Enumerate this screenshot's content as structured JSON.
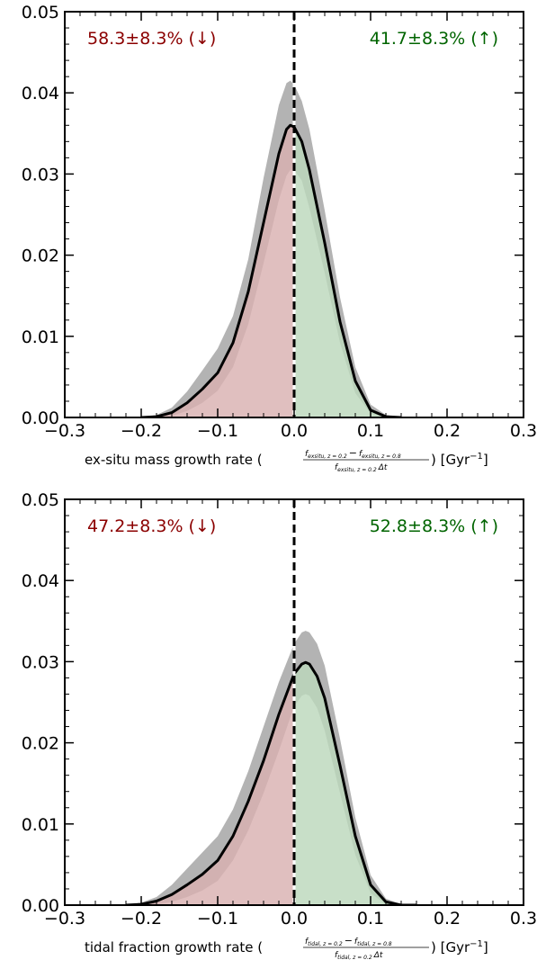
{
  "chart_data": [
    {
      "type": "area",
      "xlabel": "ex-situ mass growth rate",
      "formula": {
        "num_left": "f",
        "num_left_sub": "exsitu, z = 0.2",
        "minus": "−",
        "num_right": "f",
        "num_right_sub": "exsitu, z = 0.8",
        "den": "f",
        "den_sub": "exsitu, z = 0.2",
        "den_tail": "Δt"
      },
      "unit": "[Gyr",
      "unit_exp": "−1",
      "unit_close": "]",
      "xlim": [
        -0.3,
        0.3
      ],
      "ylim": [
        0.0,
        0.05
      ],
      "xticks": [
        -0.3,
        -0.2,
        -0.1,
        0.0,
        0.1,
        0.2,
        0.3
      ],
      "xtick_labels": [
        "−0.3",
        "−0.2",
        "−0.1",
        "0.0",
        "0.1",
        "0.2",
        "0.3"
      ],
      "yticks": [
        0.0,
        0.01,
        0.02,
        0.03,
        0.04,
        0.05
      ],
      "ytick_labels": [
        "0.00",
        "0.01",
        "0.02",
        "0.03",
        "0.04",
        "0.05"
      ],
      "annotations": {
        "left": "58.3±8.3% (↓)",
        "right": "41.7±8.3% (↑)",
        "left_color": "#8b0000",
        "right_color": "#006400"
      },
      "divider_x": 0.0,
      "x": [
        -0.2,
        -0.18,
        -0.16,
        -0.14,
        -0.12,
        -0.1,
        -0.08,
        -0.06,
        -0.04,
        -0.02,
        -0.01,
        -0.005,
        0.0,
        0.01,
        0.02,
        0.04,
        0.06,
        0.08,
        0.1,
        0.12,
        0.14
      ],
      "median": [
        0.0,
        0.0001,
        0.0006,
        0.0018,
        0.0035,
        0.0055,
        0.0092,
        0.0155,
        0.024,
        0.0325,
        0.0355,
        0.036,
        0.0358,
        0.034,
        0.0305,
        0.0215,
        0.0118,
        0.0045,
        0.0009,
        0.0001,
        0.0
      ],
      "upper": [
        0.0,
        0.0003,
        0.0012,
        0.0032,
        0.0058,
        0.0085,
        0.0125,
        0.0195,
        0.0295,
        0.0385,
        0.0412,
        0.0415,
        0.041,
        0.039,
        0.0355,
        0.0255,
        0.0148,
        0.0062,
        0.0016,
        0.0003,
        0.0
      ],
      "lower": [
        0.0,
        0.0,
        0.0002,
        0.0008,
        0.0018,
        0.0033,
        0.0062,
        0.0115,
        0.019,
        0.0268,
        0.0298,
        0.0305,
        0.0305,
        0.0292,
        0.0258,
        0.0178,
        0.0092,
        0.003,
        0.0005,
        0.0,
        0.0
      ],
      "fill_colors": {
        "negative": "#d9b1b1",
        "positive": "#bcd8bc",
        "band": "#b3b3b3"
      }
    },
    {
      "type": "area",
      "xlabel": "tidal fraction growth rate",
      "formula": {
        "num_left": "f",
        "num_left_sub": "tidal, z = 0.2",
        "minus": "−",
        "num_right": "f",
        "num_right_sub": "tidal, z = 0.8",
        "den": "f",
        "den_sub": "tidal, z = 0.2",
        "den_tail": "Δt"
      },
      "unit": "[Gyr",
      "unit_exp": "−1",
      "unit_close": "]",
      "xlim": [
        -0.3,
        0.3
      ],
      "ylim": [
        0.0,
        0.05
      ],
      "xticks": [
        -0.3,
        -0.2,
        -0.1,
        0.0,
        0.1,
        0.2,
        0.3
      ],
      "xtick_labels": [
        "−0.3",
        "−0.2",
        "−0.1",
        "0.0",
        "0.1",
        "0.2",
        "0.3"
      ],
      "yticks": [
        0.0,
        0.01,
        0.02,
        0.03,
        0.04,
        0.05
      ],
      "ytick_labels": [
        "0.00",
        "0.01",
        "0.02",
        "0.03",
        "0.04",
        "0.05"
      ],
      "annotations": {
        "left": "47.2±8.3% (↓)",
        "right": "52.8±8.3% (↑)",
        "left_color": "#8b0000",
        "right_color": "#006400"
      },
      "divider_x": 0.0,
      "x": [
        -0.22,
        -0.2,
        -0.18,
        -0.16,
        -0.14,
        -0.12,
        -0.1,
        -0.08,
        -0.06,
        -0.04,
        -0.02,
        0.0,
        0.01,
        0.015,
        0.02,
        0.03,
        0.04,
        0.06,
        0.08,
        0.1,
        0.12,
        0.14,
        0.16
      ],
      "median": [
        0.0,
        0.0001,
        0.0005,
        0.0013,
        0.0025,
        0.0038,
        0.0055,
        0.0085,
        0.0128,
        0.0178,
        0.0235,
        0.0285,
        0.0297,
        0.0299,
        0.0297,
        0.0282,
        0.0255,
        0.0172,
        0.0085,
        0.0025,
        0.0004,
        0.0,
        0.0
      ],
      "upper": [
        0.0,
        0.0003,
        0.001,
        0.0025,
        0.0045,
        0.0065,
        0.0085,
        0.0118,
        0.0165,
        0.022,
        0.0275,
        0.0322,
        0.0336,
        0.0338,
        0.0336,
        0.0322,
        0.0295,
        0.0205,
        0.0108,
        0.0037,
        0.0008,
        0.0001,
        0.0
      ],
      "lower": [
        0.0,
        0.0,
        0.0001,
        0.0004,
        0.001,
        0.0018,
        0.003,
        0.0055,
        0.0092,
        0.0138,
        0.019,
        0.0245,
        0.0258,
        0.026,
        0.0258,
        0.0243,
        0.0215,
        0.0138,
        0.0062,
        0.0015,
        0.0001,
        0.0,
        0.0
      ],
      "fill_colors": {
        "negative": "#d9b1b1",
        "positive": "#bcd8bc",
        "band": "#b3b3b3"
      }
    }
  ]
}
